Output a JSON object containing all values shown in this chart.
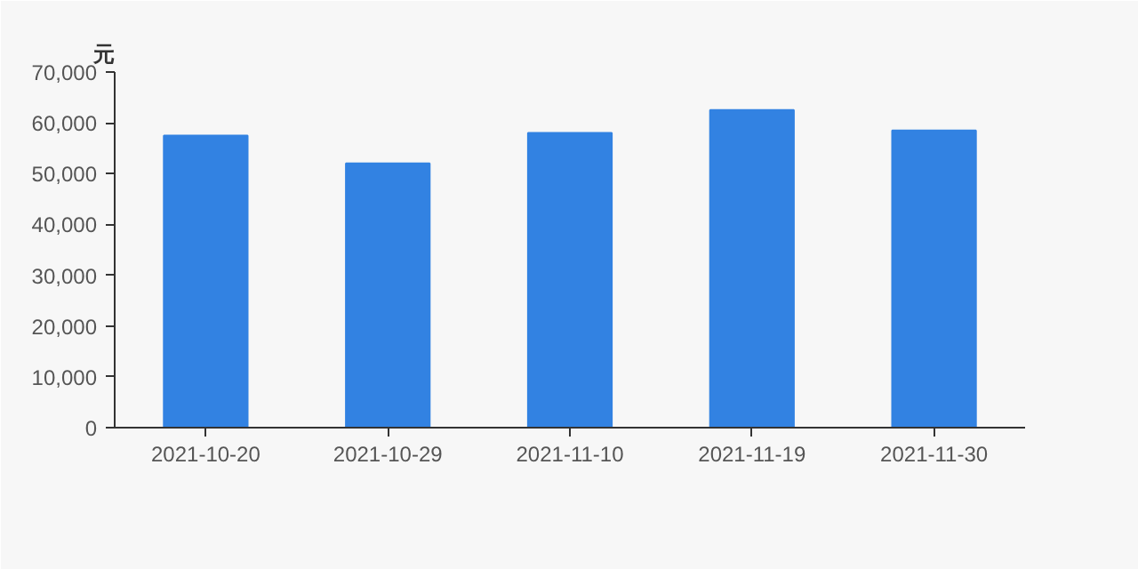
{
  "chart_data": {
    "type": "bar",
    "ylabel": "元",
    "categories": [
      "2021-10-20",
      "2021-10-29",
      "2021-11-10",
      "2021-11-19",
      "2021-11-30"
    ],
    "values": [
      57500,
      52000,
      58000,
      62500,
      58500
    ],
    "color": "#3282e2",
    "ylim": [
      0,
      70000
    ],
    "yticks": [
      {
        "value": 0,
        "label": "0"
      },
      {
        "value": 10000,
        "label": "10,000"
      },
      {
        "value": 20000,
        "label": "20,000"
      },
      {
        "value": 30000,
        "label": "30,000"
      },
      {
        "value": 40000,
        "label": "40,000"
      },
      {
        "value": 50000,
        "label": "50,000"
      },
      {
        "value": 60000,
        "label": "60,000"
      },
      {
        "value": 70000,
        "label": "70,000"
      }
    ],
    "grid": false
  }
}
